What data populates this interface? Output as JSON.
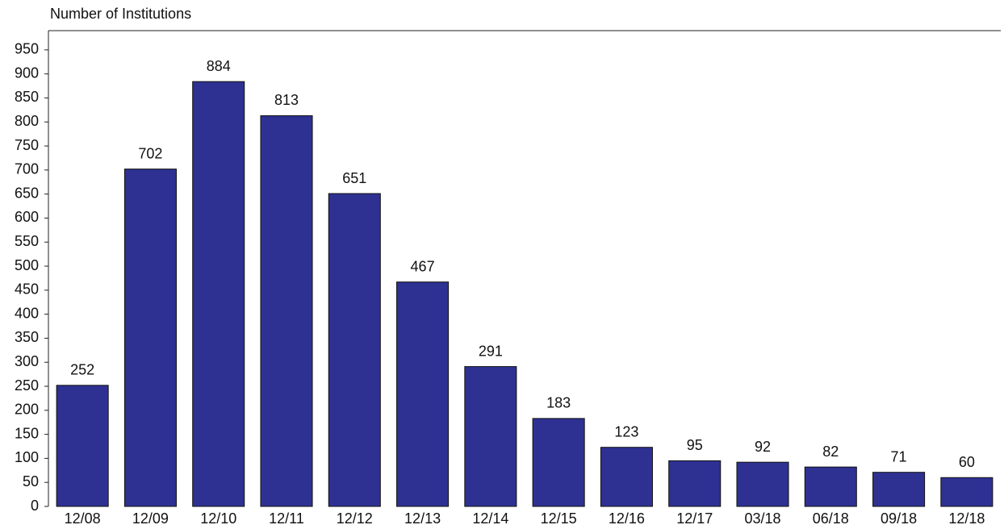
{
  "chart_data": {
    "type": "bar",
    "y_axis_label": "Number of Institutions",
    "categories": [
      "12/08",
      "12/09",
      "12/10",
      "12/11",
      "12/12",
      "12/13",
      "12/14",
      "12/15",
      "12/16",
      "12/17",
      "03/18",
      "06/18",
      "09/18",
      "12/18"
    ],
    "values": [
      252,
      702,
      884,
      813,
      651,
      467,
      291,
      183,
      123,
      95,
      92,
      82,
      71,
      60
    ],
    "color": "#2e3192",
    "ylim": [
      0,
      990
    ],
    "yticks": [
      0,
      50,
      100,
      150,
      200,
      250,
      300,
      350,
      400,
      450,
      500,
      550,
      600,
      650,
      700,
      750,
      800,
      850,
      900,
      950
    ],
    "grid": false
  }
}
